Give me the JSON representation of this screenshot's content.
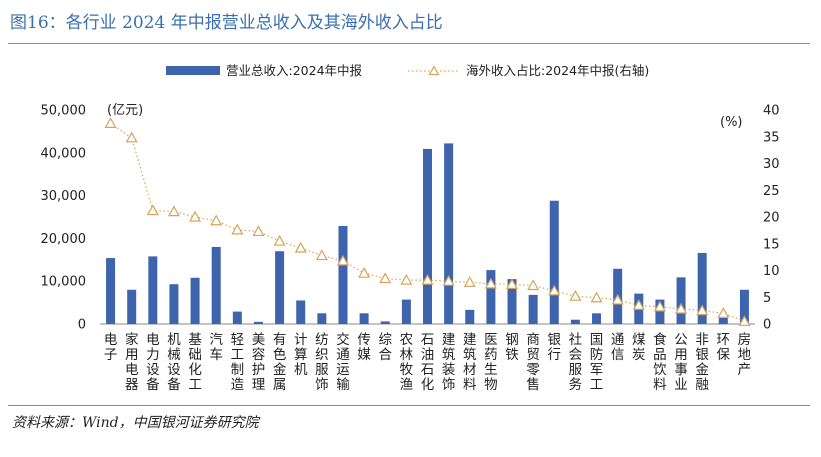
{
  "header": {
    "title": "图16：各行业 2024 年中报营业总收入及其海外收入占比"
  },
  "footer": {
    "source": "资料来源：Wind，中国银河证券研究院"
  },
  "colors": {
    "bar": "#3d64ad",
    "line": "#d7a356",
    "title": "#3a6fb0",
    "rule": "#6f8fbf"
  },
  "chart_data": {
    "type": "bar",
    "left_unit": "(亿元)",
    "right_unit": "(%)",
    "y_ticks": [
      "0",
      "10,000",
      "20,000",
      "30,000",
      "40,000",
      "50,000"
    ],
    "y2_ticks": [
      "0",
      "5",
      "10",
      "15",
      "20",
      "25",
      "30",
      "35",
      "40"
    ],
    "ylim": [
      0,
      50000
    ],
    "y2lim": [
      0,
      40
    ],
    "categories": [
      "电子",
      "家用电器",
      "电力设备",
      "机械设备",
      "基础化工",
      "汽车",
      "轻工制造",
      "美容护理",
      "有色金属",
      "计算机",
      "纺织服饰",
      "交通运输",
      "传媒",
      "综合",
      "农林牧渔",
      "石油石化",
      "建筑装饰",
      "建筑材料",
      "医药生物",
      "钢铁",
      "商贸零售",
      "银行",
      "社会服务",
      "国防军工",
      "通信",
      "煤炭",
      "食品饮料",
      "公用事业",
      "非银金融",
      "环保",
      "房地产"
    ],
    "series": [
      {
        "name": "营业总收入:2024年中报",
        "kind": "bar",
        "axis": "left",
        "values": [
          15400,
          8000,
          15800,
          9300,
          10800,
          18000,
          2900,
          500,
          17000,
          5500,
          2500,
          22900,
          2500,
          600,
          5700,
          40900,
          42200,
          3300,
          12600,
          10500,
          6800,
          28800,
          1000,
          2500,
          12900,
          7100,
          5700,
          10900,
          16600,
          1400,
          8000
        ]
      },
      {
        "name": "海外收入占比:2024年中报(右轴)",
        "kind": "line",
        "axis": "right",
        "values": [
          37.5,
          34.8,
          21.2,
          21.0,
          20.0,
          19.3,
          17.6,
          17.3,
          15.5,
          14.2,
          12.8,
          11.8,
          9.5,
          8.5,
          8.2,
          8.2,
          8.0,
          7.8,
          7.5,
          7.4,
          7.2,
          6.2,
          5.2,
          4.9,
          4.5,
          3.5,
          3.2,
          2.8,
          2.5,
          2.0,
          0.5
        ]
      }
    ]
  }
}
